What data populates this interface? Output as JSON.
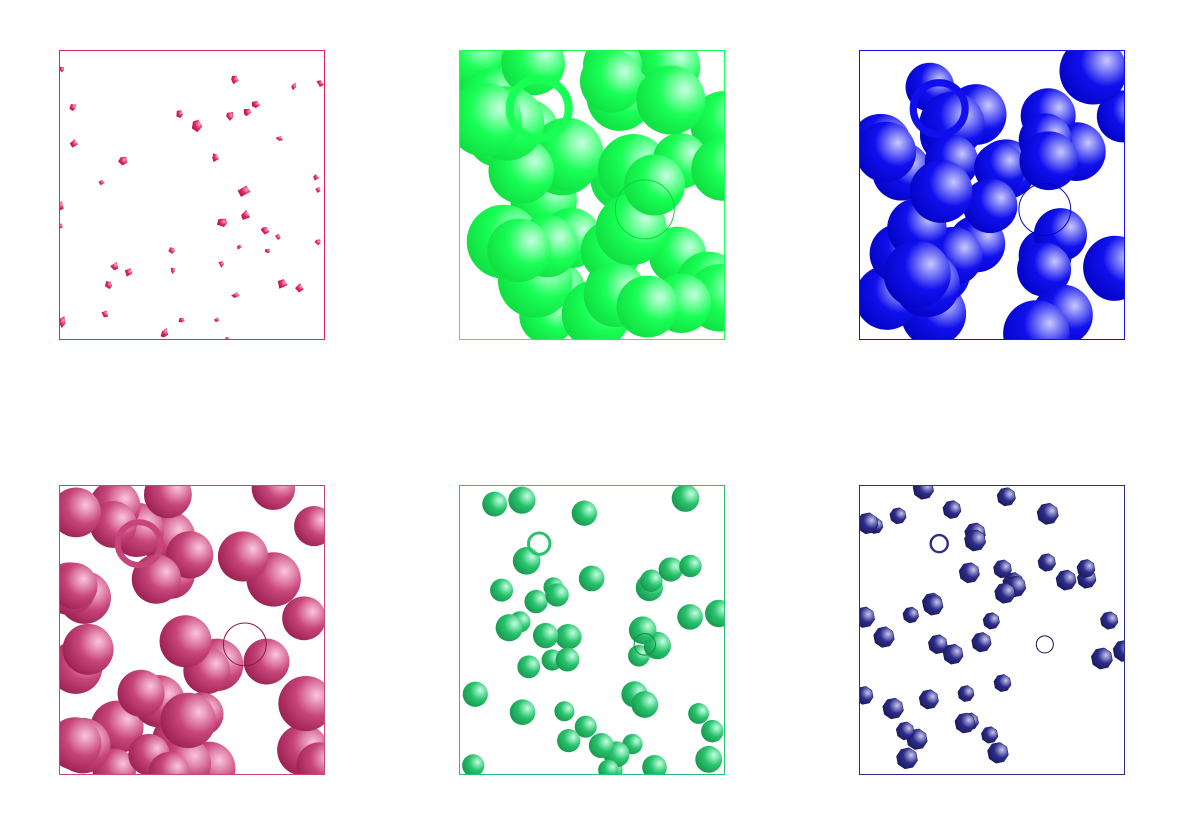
{
  "figure": {
    "panels": [
      {
        "id": "top-left",
        "name": "crimson-fragments-panel",
        "color": "#e0245e",
        "light": "#f7a8c4",
        "dark": "#b0103c",
        "density": "sparse-fragments",
        "items": 42
      },
      {
        "id": "top-middle",
        "name": "green-large-spheres-panel",
        "color": "#18ff55",
        "light": "#c8ffe0",
        "dark": "#0fd43c",
        "density": "dense-large",
        "items": 40
      },
      {
        "id": "top-right",
        "name": "blue-large-spheres-panel",
        "color": "#1010ee",
        "light": "#c9c9ff",
        "dark": "#0000b8",
        "density": "dense-large",
        "items": 36
      },
      {
        "id": "bottom-left",
        "name": "magenta-medium-spheres-panel",
        "color": "#c7457a",
        "light": "#fbc6dc",
        "dark": "#8f1646",
        "density": "dense-medium",
        "items": 40
      },
      {
        "id": "bottom-middle",
        "name": "teal-small-spheres-panel",
        "color": "#27c26c",
        "light": "#c2ffe0",
        "dark": "#138a45",
        "density": "medium-small",
        "items": 44
      },
      {
        "id": "bottom-right",
        "name": "navy-small-polyhedra-panel",
        "color": "#2c2c8a",
        "light": "#c7c7ee",
        "dark": "#141450",
        "density": "medium-small",
        "items": 42
      }
    ]
  }
}
